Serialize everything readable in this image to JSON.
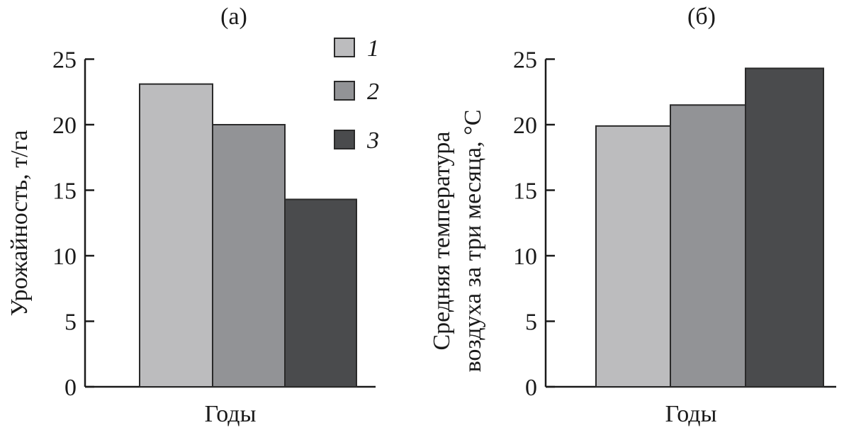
{
  "chart_data": [
    {
      "type": "bar",
      "title": "(а)",
      "xlabel": "Годы",
      "ylabel": "Урожайность, т/га",
      "ylim": [
        0,
        25
      ],
      "yticks": [
        0,
        5,
        10,
        15,
        20,
        25
      ],
      "grid": false,
      "legend": {
        "placement": "top-right",
        "entries": [
          "1",
          "2",
          "3"
        ]
      },
      "series": [
        {
          "name": "1",
          "values": [
            23.1
          ],
          "color": "#bcbcbe"
        },
        {
          "name": "2",
          "values": [
            20.0
          ],
          "color": "#929396"
        },
        {
          "name": "3",
          "values": [
            14.3
          ],
          "color": "#4a4b4d"
        }
      ]
    },
    {
      "type": "bar",
      "title": "(б)",
      "xlabel": "Годы",
      "ylabel": [
        "Средняя температура",
        "воздуха за три месяца, °С"
      ],
      "ylim": [
        0,
        25
      ],
      "yticks": [
        0,
        5,
        10,
        15,
        20,
        25
      ],
      "grid": false,
      "series": [
        {
          "name": "1",
          "values": [
            19.9
          ],
          "color": "#bcbcbe"
        },
        {
          "name": "2",
          "values": [
            21.5
          ],
          "color": "#929396"
        },
        {
          "name": "3",
          "values": [
            24.3
          ],
          "color": "#4a4b4d"
        }
      ]
    }
  ]
}
